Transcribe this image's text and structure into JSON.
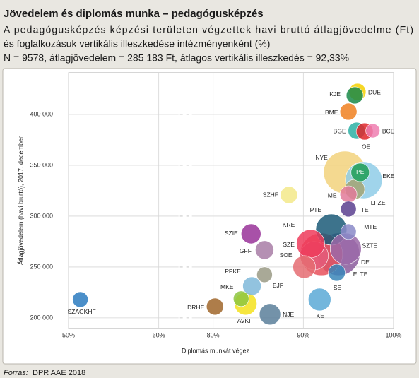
{
  "chart_data": {
    "type": "bubble",
    "title": "Jövedelem és diplomás munka – pedagógusképzés",
    "subtitle": [
      "A pedagógusképzés képzési területen végzettek havi bruttó átlagjövedelme (Ft)",
      "és foglalkozásuk vertikális illeszkedése intézményenként (%)"
    ],
    "note": "N = 9578, átlagjövedelem = 285 183 Ft, átlagos vertikális illeszkedés = 92,33%",
    "x_label": "Diplomás munkát végez",
    "y_label": "Átlagjövedelem (havi bruttó), 2017. december",
    "source_label": "Forrás:",
    "source": "DPR AAE 2018",
    "xlim": [
      50,
      100
    ],
    "x_break": [
      60,
      80
    ],
    "xticks": [
      {
        "value": 50,
        "label": "50%"
      },
      {
        "value": 60,
        "label": "60%"
      },
      {
        "value": 80,
        "label": "80%"
      },
      {
        "value": 90,
        "label": "90%"
      },
      {
        "value": 100,
        "label": "100%"
      }
    ],
    "ylim": [
      189500,
      441000
    ],
    "yticks": [
      {
        "value": 200000,
        "label": "200 000"
      },
      {
        "value": 250000,
        "label": "250 000"
      },
      {
        "value": 300000,
        "label": "300 000"
      },
      {
        "value": 350000,
        "label": "350 000"
      },
      {
        "value": 400000,
        "label": "400 000"
      }
    ],
    "grid": true,
    "labels": [
      "NYE",
      "ELTE",
      "DE",
      "EKE",
      "PTE",
      "SZTE",
      "SZE",
      "KRE",
      "SOE",
      "KE",
      "AVKF",
      "NJE",
      "LFZE",
      "SZIE",
      "PE",
      "GFF",
      "PPKE",
      "SZHF",
      "ME",
      "SE",
      "DRHE",
      "BGE",
      "OE",
      "BME",
      "DUE",
      "KJE",
      "SZAGKHF",
      "MKE",
      "EJF",
      "MTE",
      "TE",
      "BCE"
    ],
    "x": [
      94.6,
      93.9,
      92.0,
      96.7,
      93.1,
      94.7,
      91.2,
      90.8,
      90.1,
      91.8,
      83.6,
      86.3,
      95.7,
      84.2,
      96.3,
      85.7,
      84.3,
      88.4,
      95.0,
      93.7,
      80.2,
      95.9,
      96.8,
      95.0,
      96.0,
      95.7,
      51.3,
      83.1,
      85.7,
      95.0,
      95.0,
      97.7
    ],
    "values": [
      343100,
      262500,
      262500,
      335400,
      286800,
      268000,
      261100,
      272900,
      250000,
      218000,
      213900,
      203500,
      326400,
      282600,
      343100,
      266700,
      231250,
      320800,
      321500,
      244400,
      211100,
      384000,
      383300,
      402800,
      422200,
      418800,
      218000,
      218800,
      242400,
      284700,
      307000,
      384000
    ],
    "sizes": [
      900,
      900,
      900,
      676,
      484,
      484,
      400,
      400,
      256,
      256,
      256,
      225,
      196,
      196,
      169,
      169,
      169,
      144,
      144,
      144,
      144,
      144,
      144,
      144,
      144,
      144,
      121,
      121,
      121,
      121,
      121,
      100
    ],
    "colors": [
      "#f2d27c",
      "#8b5c9c",
      "#e8505b",
      "#8fcde8",
      "#1b5a78",
      "#9b6aa8",
      "#e45c7a",
      "#ee3b5a",
      "#e56c72",
      "#5aa9d6",
      "#f4e21c",
      "#5a7f9a",
      "#a3a474",
      "#993399",
      "#1f9e56",
      "#a87ca6",
      "#7fb8d9",
      "#f3e98a",
      "#e27a9a",
      "#3a86b8",
      "#a0662a",
      "#2bb0a5",
      "#e0262a",
      "#f08020",
      "#f5d000",
      "#1a8a4a",
      "#2b7bbf",
      "#8dc63f",
      "#9a9a85",
      "#8a8ac8",
      "#5a3f8f",
      "#ef7eb0"
    ]
  }
}
